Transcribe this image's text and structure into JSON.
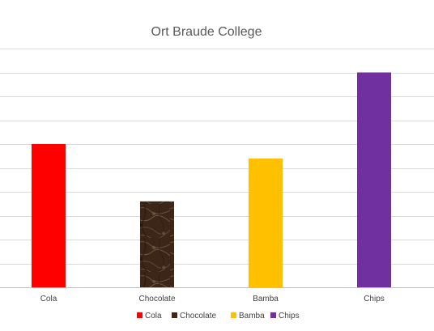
{
  "chart_data": {
    "type": "bar",
    "title": "Ort Braude College",
    "categories": [
      "Cola",
      "Chocolate",
      "Bamba",
      "Chips"
    ],
    "values": [
      3,
      1.8,
      2.7,
      4.5
    ],
    "colors": [
      "#FF0000",
      "#3E2A1E",
      "#FFC000",
      "#7030A0"
    ],
    "bar_fill_styles": [
      "solid",
      "marble-texture",
      "solid",
      "solid"
    ],
    "series": [
      {
        "name": "Cola",
        "color": "#FF0000"
      },
      {
        "name": "Chocolate",
        "color": "#3E2A1E"
      },
      {
        "name": "Bamba",
        "color": "#FFC000"
      },
      {
        "name": "Chips",
        "color": "#7030A0"
      }
    ],
    "xlabel": "",
    "ylabel": "",
    "ylim": [
      0,
      5
    ],
    "y_tick_step": 0.5,
    "y_tick_labels_visible": false,
    "grid": true,
    "legend_position": "bottom"
  }
}
